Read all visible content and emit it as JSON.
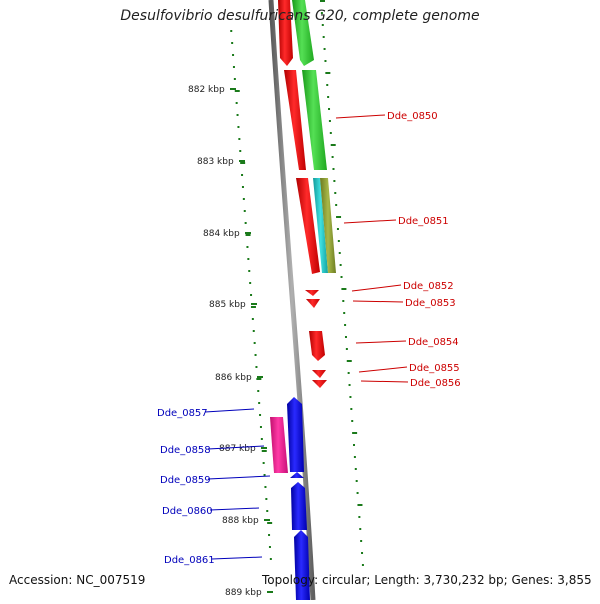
{
  "title": "Desulfovibrio desulfuricans G20, complete genome",
  "footer": {
    "accession": "Accession: NC_007519",
    "topology": "Topology: circular; Length: 3,730,232 bp; Genes: 3,855"
  },
  "ruler": [
    "882 kbp",
    "883 kbp",
    "884 kbp",
    "885 kbp",
    "886 kbp",
    "887 kbp",
    "888 kbp",
    "889 kbp"
  ],
  "genes_right": [
    "Dde_0850",
    "Dde_0851",
    "Dde_0852",
    "Dde_0853",
    "Dde_0854",
    "Dde_0855",
    "Dde_0856"
  ],
  "genes_left": [
    "Dde_0857",
    "Dde_0858",
    "Dde_0859",
    "Dde_0860",
    "Dde_0861"
  ],
  "colors": {
    "forward_label": "#cc0000",
    "reverse_label": "#0000bb",
    "red_gene": "#ff0000",
    "green_gene": "#22cc22",
    "cyan_gene": "#20c8c8",
    "olive_gene": "#8a9a30",
    "blue_gene": "#0000ee",
    "pink_gene": "#ff1493",
    "tick": "#1a7a1a",
    "backbone": "#808080"
  }
}
